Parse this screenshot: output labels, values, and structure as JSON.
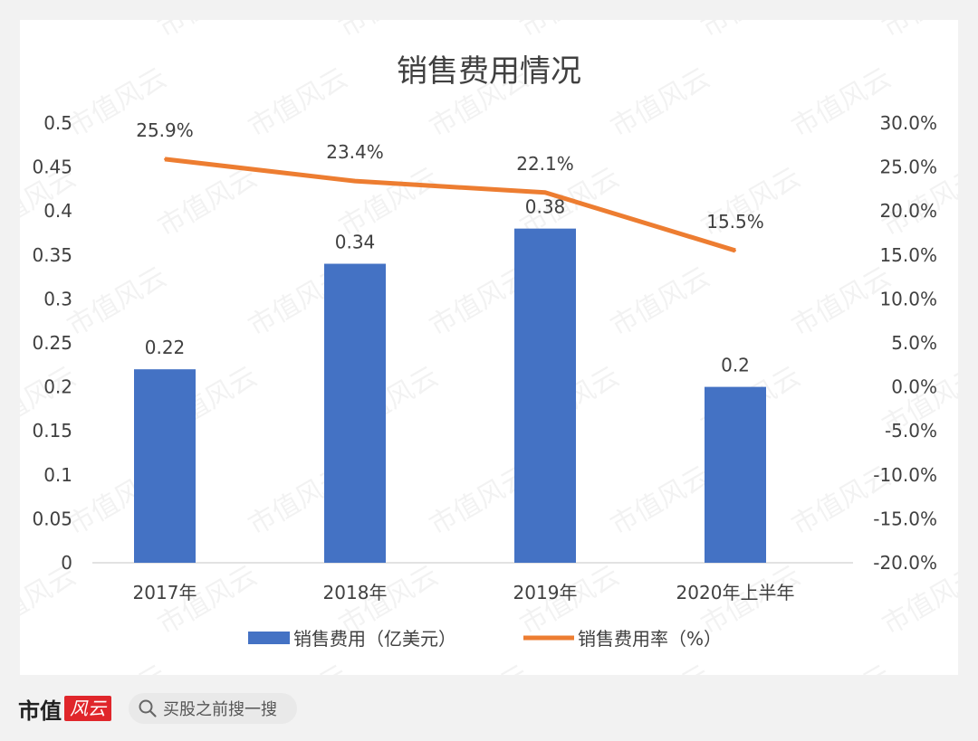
{
  "chart_data": {
    "type": "bar",
    "title": "销售费用情况",
    "categories": [
      "2017年",
      "2018年",
      "2019年",
      "2020年上半年"
    ],
    "series": [
      {
        "name": "销售费用（亿美元）",
        "type": "bar",
        "axis": "left",
        "values": [
          0.22,
          0.34,
          0.38,
          0.2
        ],
        "labels": [
          "0.22",
          "0.34",
          "0.38",
          "0.2"
        ],
        "color": "#4472c4"
      },
      {
        "name": "销售费用率（%）",
        "type": "line",
        "axis": "right",
        "values": [
          25.9,
          23.4,
          22.1,
          15.5
        ],
        "labels": [
          "25.9%",
          "23.4%",
          "22.1%",
          "15.5%"
        ],
        "color": "#ed7d31"
      }
    ],
    "y_left": {
      "min": 0,
      "max": 0.5,
      "ticks": [
        "0",
        "0.05",
        "0.1",
        "0.15",
        "0.2",
        "0.25",
        "0.3",
        "0.35",
        "0.4",
        "0.45",
        "0.5"
      ]
    },
    "y_right": {
      "min": -20,
      "max": 30,
      "ticks": [
        "-20.0%",
        "-15.0%",
        "-10.0%",
        "-5.0%",
        "0.0%",
        "5.0%",
        "10.0%",
        "15.0%",
        "20.0%",
        "25.0%",
        "30.0%"
      ]
    },
    "legend": "bottom",
    "grid": false
  },
  "watermark": "市值风云",
  "footer": {
    "logo_text": "市值",
    "logo_badge": "风云",
    "search_icon": "search-icon",
    "search_text": "买股之前搜一搜"
  }
}
